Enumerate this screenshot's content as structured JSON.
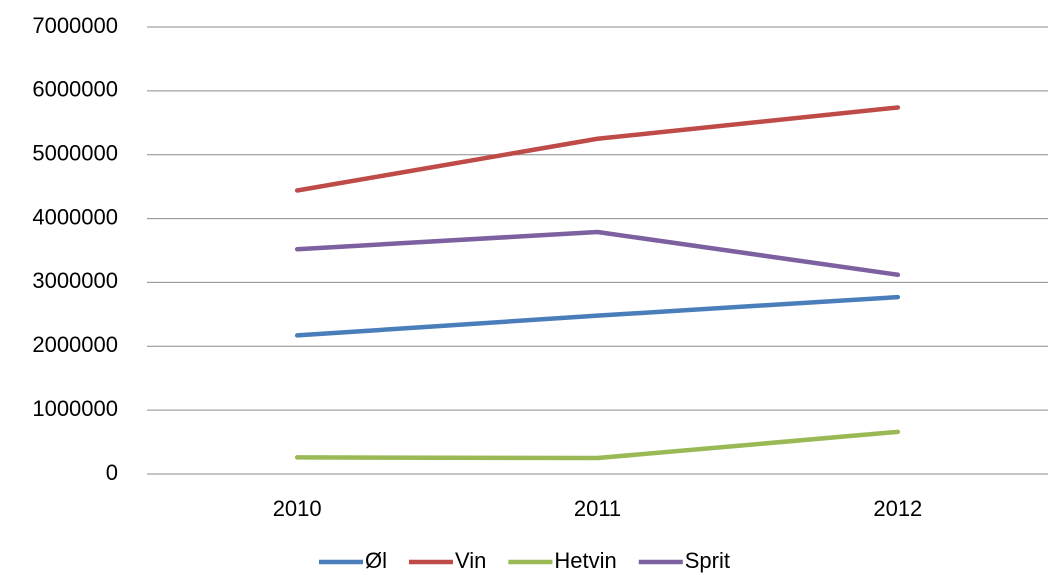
{
  "chart_data": {
    "type": "line",
    "categories": [
      "2010",
      "2011",
      "2012"
    ],
    "series": [
      {
        "name": "Øl",
        "color": "#4a7ebb",
        "values": [
          2170000,
          2480000,
          2770000
        ]
      },
      {
        "name": "Vin",
        "color": "#be4b48",
        "values": [
          4440000,
          5250000,
          5740000
        ]
      },
      {
        "name": "Hetvin",
        "color": "#98b954",
        "values": [
          260000,
          250000,
          660000
        ]
      },
      {
        "name": "Sprit",
        "color": "#7d60a0",
        "values": [
          3520000,
          3790000,
          3120000
        ]
      }
    ],
    "ylim": [
      0,
      7000000
    ],
    "yticks": [
      0,
      1000000,
      2000000,
      3000000,
      4000000,
      5000000,
      6000000,
      7000000
    ],
    "grid": true,
    "legend": "bottom"
  }
}
